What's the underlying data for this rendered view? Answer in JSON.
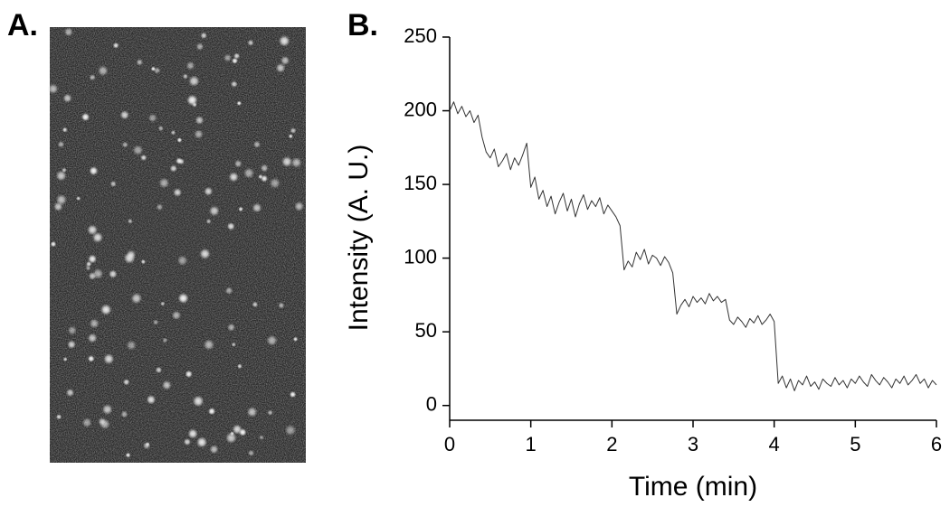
{
  "panel_labels": [
    "A.",
    "B."
  ],
  "chart_data": {
    "type": "line",
    "x_label": "Time (min)",
    "y_label": "Intensity (A. U.)",
    "color": "#333333",
    "xlim": [
      0,
      6
    ],
    "xticks": [
      0,
      1,
      2,
      3,
      4,
      5,
      6
    ],
    "ylim": [
      -10,
      250
    ],
    "yticks": [
      0,
      50,
      100,
      150,
      200,
      250
    ],
    "x": [
      0,
      0.05,
      0.1,
      0.15,
      0.2,
      0.25,
      0.3,
      0.35,
      0.4,
      0.45,
      0.5,
      0.55,
      0.6,
      0.65,
      0.7,
      0.75,
      0.8,
      0.85,
      0.9,
      0.95,
      1,
      1.05,
      1.1,
      1.15,
      1.2,
      1.25,
      1.3,
      1.35,
      1.4,
      1.45,
      1.5,
      1.55,
      1.6,
      1.65,
      1.7,
      1.75,
      1.8,
      1.85,
      1.9,
      1.95,
      2,
      2.05,
      2.1,
      2.15,
      2.2,
      2.25,
      2.3,
      2.35,
      2.4,
      2.45,
      2.5,
      2.55,
      2.6,
      2.65,
      2.7,
      2.75,
      2.8,
      2.85,
      2.9,
      2.95,
      3,
      3.05,
      3.1,
      3.15,
      3.2,
      3.25,
      3.3,
      3.35,
      3.4,
      3.45,
      3.5,
      3.55,
      3.6,
      3.65,
      3.7,
      3.75,
      3.8,
      3.85,
      3.9,
      3.95,
      4,
      4.05,
      4.1,
      4.15,
      4.2,
      4.25,
      4.3,
      4.35,
      4.4,
      4.45,
      4.5,
      4.55,
      4.6,
      4.65,
      4.7,
      4.75,
      4.8,
      4.85,
      4.9,
      4.95,
      5,
      5.05,
      5.1,
      5.15,
      5.2,
      5.25,
      5.3,
      5.35,
      5.4,
      5.45,
      5.5,
      5.55,
      5.6,
      5.65,
      5.7,
      5.75,
      5.8,
      5.85,
      5.9,
      5.95,
      6
    ],
    "values": [
      200,
      206,
      198,
      203,
      196,
      200,
      192,
      197,
      182,
      172,
      168,
      174,
      162,
      166,
      171,
      160,
      168,
      163,
      170,
      178,
      148,
      155,
      140,
      146,
      135,
      142,
      130,
      138,
      144,
      132,
      140,
      128,
      137,
      143,
      133,
      139,
      135,
      141,
      130,
      136,
      132,
      128,
      122,
      92,
      98,
      94,
      104,
      99,
      106,
      96,
      102,
      100,
      95,
      101,
      97,
      90,
      62,
      68,
      72,
      67,
      74,
      70,
      73,
      69,
      76,
      71,
      74,
      70,
      72,
      58,
      55,
      60,
      57,
      53,
      59,
      56,
      61,
      55,
      58,
      62,
      57,
      15,
      20,
      12,
      18,
      10,
      17,
      14,
      20,
      13,
      16,
      11,
      18,
      15,
      13,
      19,
      14,
      17,
      12,
      18,
      15,
      20,
      16,
      13,
      21,
      17,
      14,
      19,
      16,
      12,
      18,
      15,
      20,
      14,
      17,
      21,
      15,
      18,
      12,
      17,
      14
    ]
  }
}
